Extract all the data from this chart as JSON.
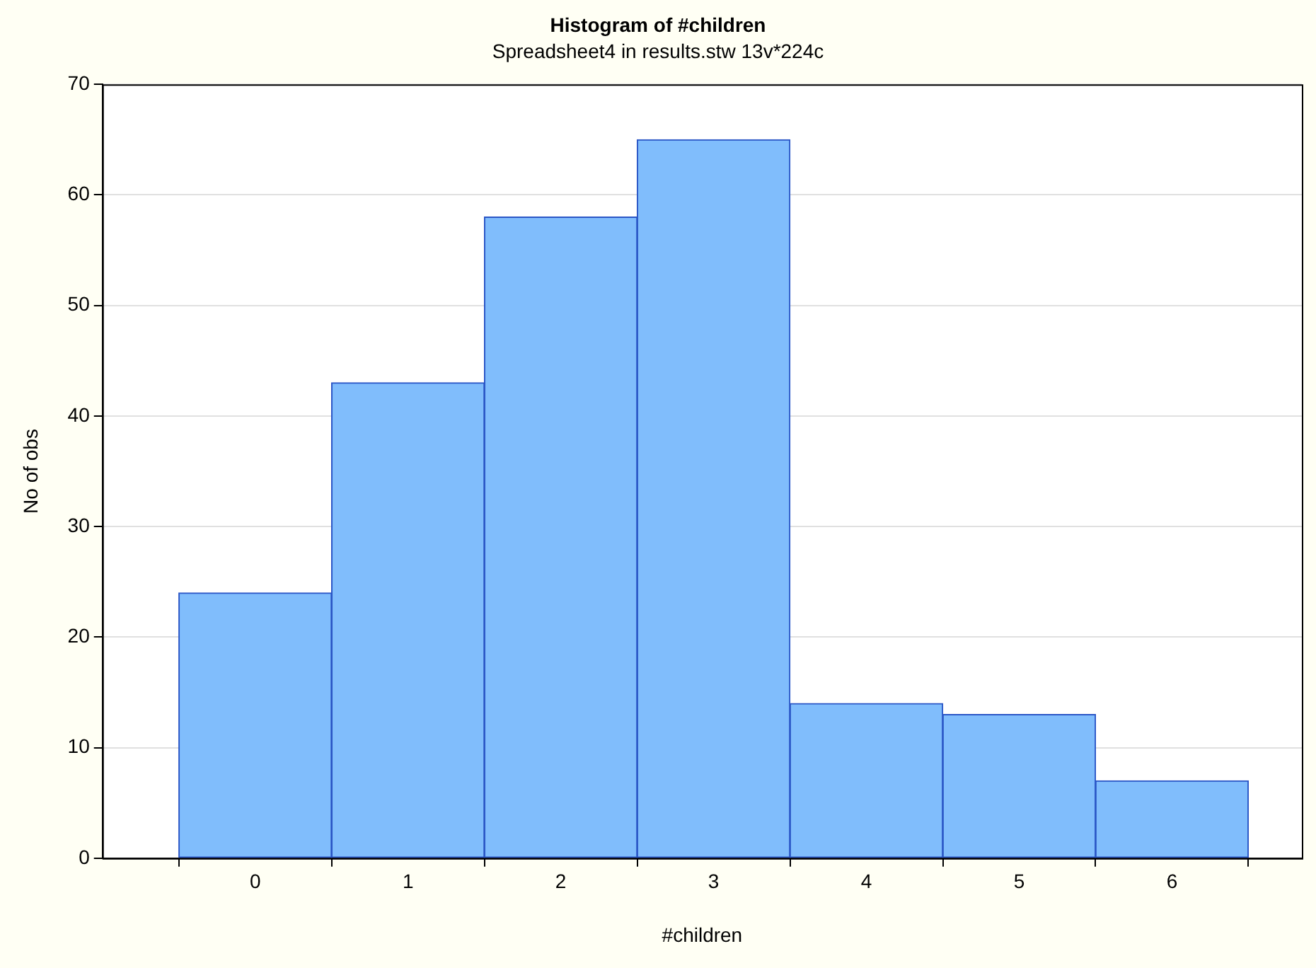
{
  "chart_data": {
    "type": "histogram",
    "title": "Histogram of #children",
    "subtitle": "Spreadsheet4 in results.stw 13v*224c",
    "xlabel": "#children",
    "ylabel": "No of obs",
    "bins": [
      -0.5,
      0.5,
      1.5,
      2.5,
      3.5,
      4.5,
      5.5,
      6.5
    ],
    "values": [
      24,
      43,
      58,
      65,
      14,
      13,
      7
    ],
    "color": "#80bdfc",
    "xlim": [
      -1,
      6.85
    ],
    "xticks": [
      0,
      1,
      2,
      3,
      4,
      5,
      6
    ],
    "ylim": [
      0,
      70
    ],
    "yticks": [
      0,
      10,
      20,
      30,
      40,
      50,
      60,
      70
    ],
    "grid": "y",
    "legend": false
  }
}
